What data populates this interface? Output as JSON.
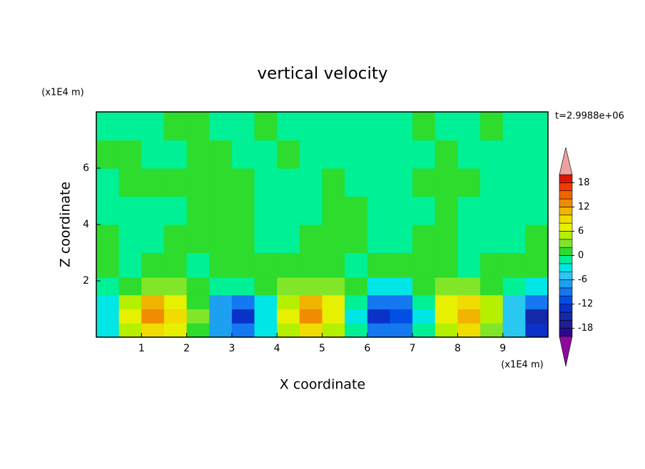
{
  "chart_data": {
    "type": "contour",
    "title": "vertical velocity",
    "x_label": "X coordinate",
    "y_label": "Z coordinate",
    "x_unit": "(x1E4 m)",
    "y_unit": "(x1E4 m)",
    "time_label": "t=2.9988e+06",
    "xlim": [
      0,
      10
    ],
    "ylim": [
      0,
      8
    ],
    "xticks": [
      1,
      2,
      3,
      4,
      5,
      6,
      7,
      8,
      9
    ],
    "yticks": [
      2,
      4,
      6
    ],
    "x": [
      0.25,
      0.75,
      1.25,
      1.75,
      2.25,
      2.75,
      3.25,
      3.75,
      4.25,
      4.75,
      5.25,
      5.75,
      6.25,
      6.75,
      7.25,
      7.75,
      8.25,
      8.75,
      9.25,
      9.75
    ],
    "y": [
      0.25,
      0.75,
      1.25,
      1.75,
      2.5,
      3.5,
      4.5,
      5.5,
      6.5,
      7.5
    ],
    "values": [
      [
        -3,
        5,
        9,
        6,
        1,
        -7,
        -9,
        -3,
        4,
        9,
        5,
        -2,
        -9,
        -9,
        -2,
        5,
        8,
        3,
        -5,
        -13
      ],
      [
        -4,
        7,
        12,
        9,
        2,
        -8,
        -13,
        -4,
        6,
        12,
        7,
        -3,
        -13,
        -12,
        -3,
        7,
        11,
        5,
        -6,
        -15
      ],
      [
        -3,
        5,
        10,
        7,
        1,
        -7,
        -10,
        -3,
        5,
        10,
        6,
        -2,
        -10,
        -10,
        -2,
        6,
        9,
        4,
        -5,
        -10
      ],
      [
        -1,
        1,
        3,
        2,
        0,
        -2,
        -1,
        0,
        2,
        3,
        2,
        0,
        -3,
        -3,
        0,
        2,
        3,
        1,
        -2,
        -3
      ],
      [
        1,
        -1,
        0,
        1,
        -1,
        0,
        1,
        0,
        1,
        0,
        1,
        -1,
        0,
        1,
        0,
        1,
        -1,
        0,
        1,
        0
      ],
      [
        1,
        -1,
        -1,
        0,
        1,
        1,
        1,
        -1,
        -1,
        1,
        1,
        1,
        -1,
        -1,
        1,
        1,
        -1,
        -1,
        -1,
        1
      ],
      [
        -1,
        -1,
        -1,
        -1,
        1,
        1,
        1,
        -1,
        -1,
        -1,
        1,
        1,
        -1,
        -1,
        -1,
        1,
        -1,
        -1,
        -1,
        -1
      ],
      [
        -1,
        1,
        1,
        1,
        1,
        1,
        1,
        -1,
        -1,
        -1,
        1,
        -1,
        -1,
        -1,
        1,
        1,
        1,
        -1,
        -1,
        -1
      ],
      [
        1,
        1,
        -1,
        -1,
        1,
        1,
        -1,
        -1,
        1,
        -1,
        -1,
        -1,
        -1,
        -1,
        -1,
        1,
        -1,
        -1,
        -1,
        -1
      ],
      [
        -1,
        -1,
        -1,
        1,
        1,
        -1,
        -1,
        1,
        -1,
        -1,
        -1,
        -1,
        -1,
        -1,
        1,
        -1,
        -1,
        1,
        -1,
        -1
      ]
    ],
    "levels": [
      -20,
      -18,
      -16,
      -14,
      -12,
      -10,
      -8,
      -6,
      -4,
      -2,
      0,
      2,
      4,
      6,
      8,
      10,
      12,
      14,
      16,
      18,
      20
    ],
    "colors": [
      "#8c0aa0",
      "#2a0a8c",
      "#1e1e96",
      "#1428aa",
      "#0a32c8",
      "#0050e6",
      "#1478f0",
      "#1ea0f0",
      "#28c8f0",
      "#00e6e6",
      "#00f096",
      "#2ddc2d",
      "#82e628",
      "#b4f000",
      "#e6f000",
      "#f0dc00",
      "#f0b400",
      "#f08c00",
      "#f06400",
      "#f03c00",
      "#dc1400",
      "#f0a0a0"
    ],
    "colorbar_ticks": [
      18,
      12,
      6,
      0,
      -6,
      -12,
      -18
    ]
  }
}
